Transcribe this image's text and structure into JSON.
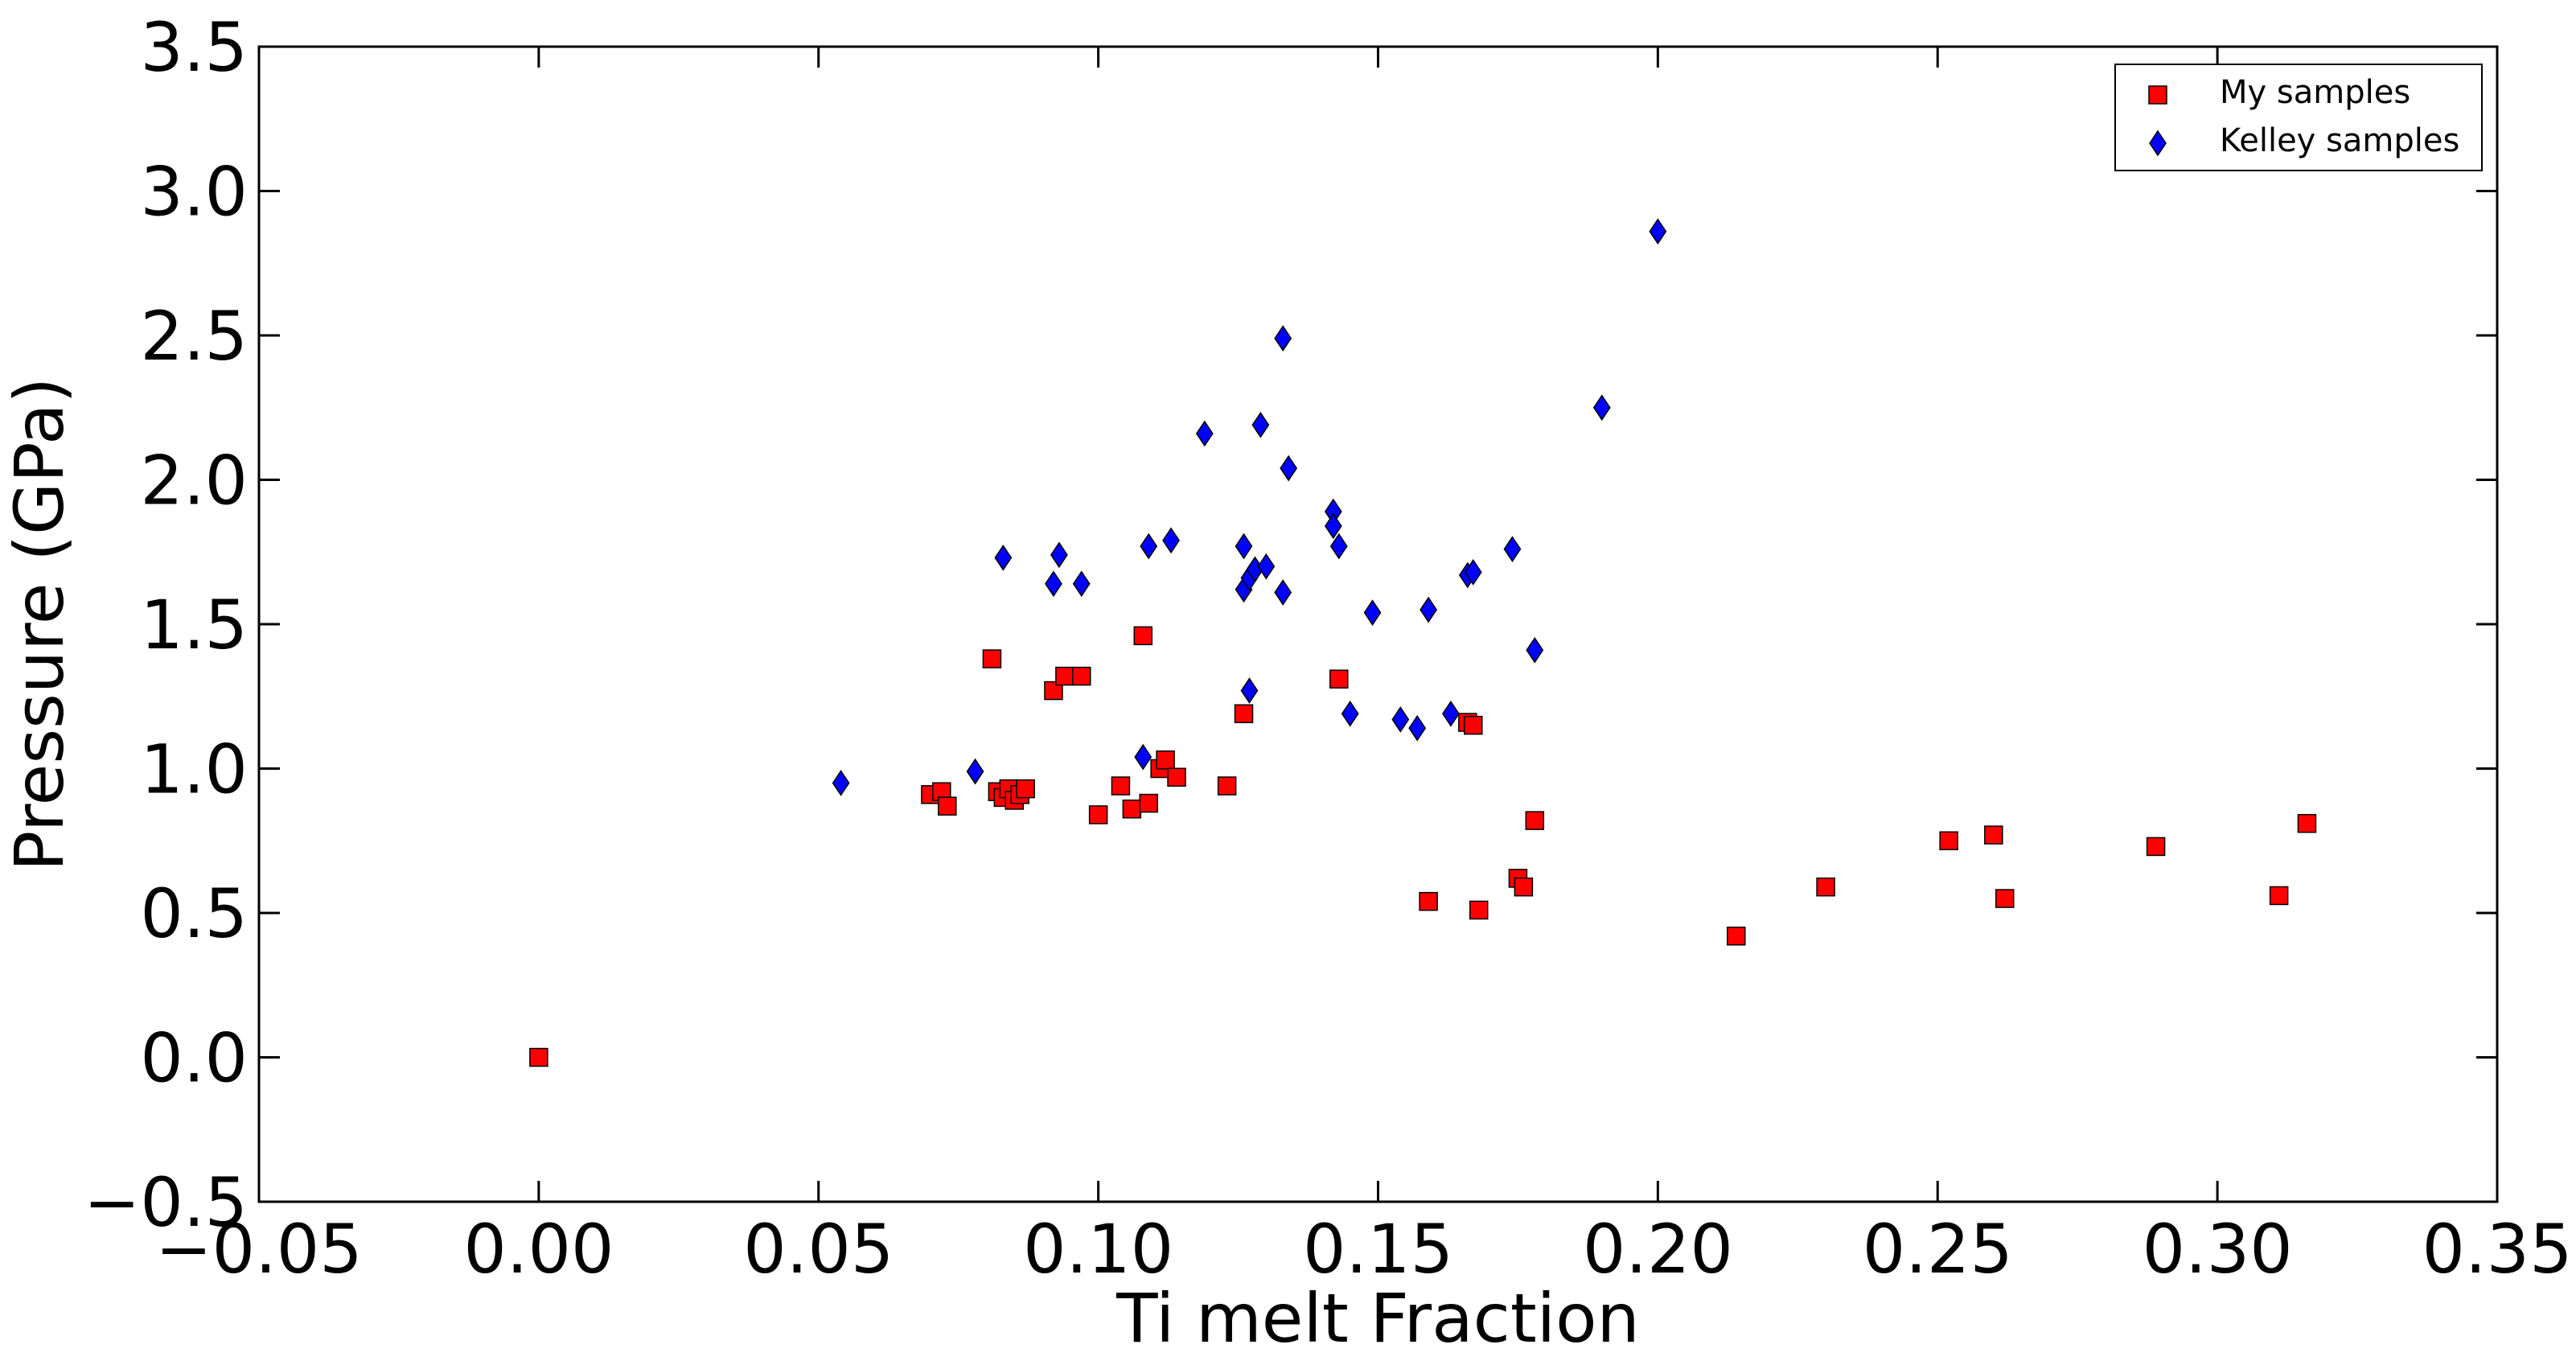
{
  "chart_data": {
    "type": "scatter",
    "title": "",
    "xlabel": "Ti melt Fraction",
    "ylabel": "Pressure (GPa)",
    "xlim": [
      -0.05,
      0.35
    ],
    "ylim": [
      -0.5,
      3.5
    ],
    "xticks": [
      -0.05,
      0.0,
      0.05,
      0.1,
      0.15,
      0.2,
      0.25,
      0.3,
      0.35
    ],
    "xtick_labels": [
      "−0.05",
      "0.00",
      "0.05",
      "0.10",
      "0.15",
      "0.20",
      "0.25",
      "0.30",
      "0.35"
    ],
    "yticks": [
      -0.5,
      0.0,
      0.5,
      1.0,
      1.5,
      2.0,
      2.5,
      3.0,
      3.5
    ],
    "ytick_labels": [
      "−0.5",
      "0.0",
      "0.5",
      "1.0",
      "1.5",
      "2.0",
      "2.5",
      "3.0",
      "3.5"
    ],
    "grid": false,
    "legend_position": "top-right",
    "series": [
      {
        "name": "My samples",
        "marker": "square",
        "color": "#ff0000",
        "points": [
          [
            0.0,
            0.0
          ],
          [
            0.07,
            0.91
          ],
          [
            0.072,
            0.92
          ],
          [
            0.073,
            0.87
          ],
          [
            0.081,
            1.38
          ],
          [
            0.082,
            0.92
          ],
          [
            0.083,
            0.9
          ],
          [
            0.084,
            0.93
          ],
          [
            0.085,
            0.89
          ],
          [
            0.086,
            0.91
          ],
          [
            0.087,
            0.93
          ],
          [
            0.092,
            1.27
          ],
          [
            0.094,
            1.32
          ],
          [
            0.097,
            1.32
          ],
          [
            0.1,
            0.84
          ],
          [
            0.104,
            0.94
          ],
          [
            0.106,
            0.86
          ],
          [
            0.108,
            1.46
          ],
          [
            0.109,
            0.88
          ],
          [
            0.111,
            1.0
          ],
          [
            0.112,
            1.03
          ],
          [
            0.114,
            0.97
          ],
          [
            0.123,
            0.94
          ],
          [
            0.126,
            1.19
          ],
          [
            0.143,
            1.31
          ],
          [
            0.159,
            0.54
          ],
          [
            0.166,
            1.16
          ],
          [
            0.167,
            1.15
          ],
          [
            0.168,
            0.51
          ],
          [
            0.175,
            0.62
          ],
          [
            0.176,
            0.59
          ],
          [
            0.178,
            0.82
          ],
          [
            0.214,
            0.42
          ],
          [
            0.23,
            0.59
          ],
          [
            0.252,
            0.75
          ],
          [
            0.26,
            0.77
          ],
          [
            0.262,
            0.55
          ],
          [
            0.289,
            0.73
          ],
          [
            0.311,
            0.56
          ],
          [
            0.316,
            0.81
          ]
        ]
      },
      {
        "name": "Kelley samples",
        "marker": "diamond",
        "color": "#0000ff",
        "points": [
          [
            0.054,
            0.95
          ],
          [
            0.078,
            0.99
          ],
          [
            0.083,
            1.73
          ],
          [
            0.092,
            1.64
          ],
          [
            0.093,
            1.74
          ],
          [
            0.097,
            1.64
          ],
          [
            0.108,
            1.04
          ],
          [
            0.109,
            1.77
          ],
          [
            0.113,
            1.79
          ],
          [
            0.119,
            2.16
          ],
          [
            0.126,
            1.77
          ],
          [
            0.126,
            1.62
          ],
          [
            0.127,
            1.66
          ],
          [
            0.127,
            1.27
          ],
          [
            0.128,
            1.69
          ],
          [
            0.129,
            2.19
          ],
          [
            0.13,
            1.7
          ],
          [
            0.133,
            2.49
          ],
          [
            0.133,
            1.61
          ],
          [
            0.134,
            2.04
          ],
          [
            0.142,
            1.89
          ],
          [
            0.142,
            1.84
          ],
          [
            0.143,
            1.77
          ],
          [
            0.145,
            1.19
          ],
          [
            0.149,
            1.54
          ],
          [
            0.154,
            1.17
          ],
          [
            0.157,
            1.14
          ],
          [
            0.159,
            1.55
          ],
          [
            0.163,
            1.19
          ],
          [
            0.166,
            1.67
          ],
          [
            0.167,
            1.68
          ],
          [
            0.174,
            1.76
          ],
          [
            0.178,
            1.41
          ],
          [
            0.19,
            2.25
          ],
          [
            0.2,
            2.86
          ]
        ]
      }
    ]
  }
}
